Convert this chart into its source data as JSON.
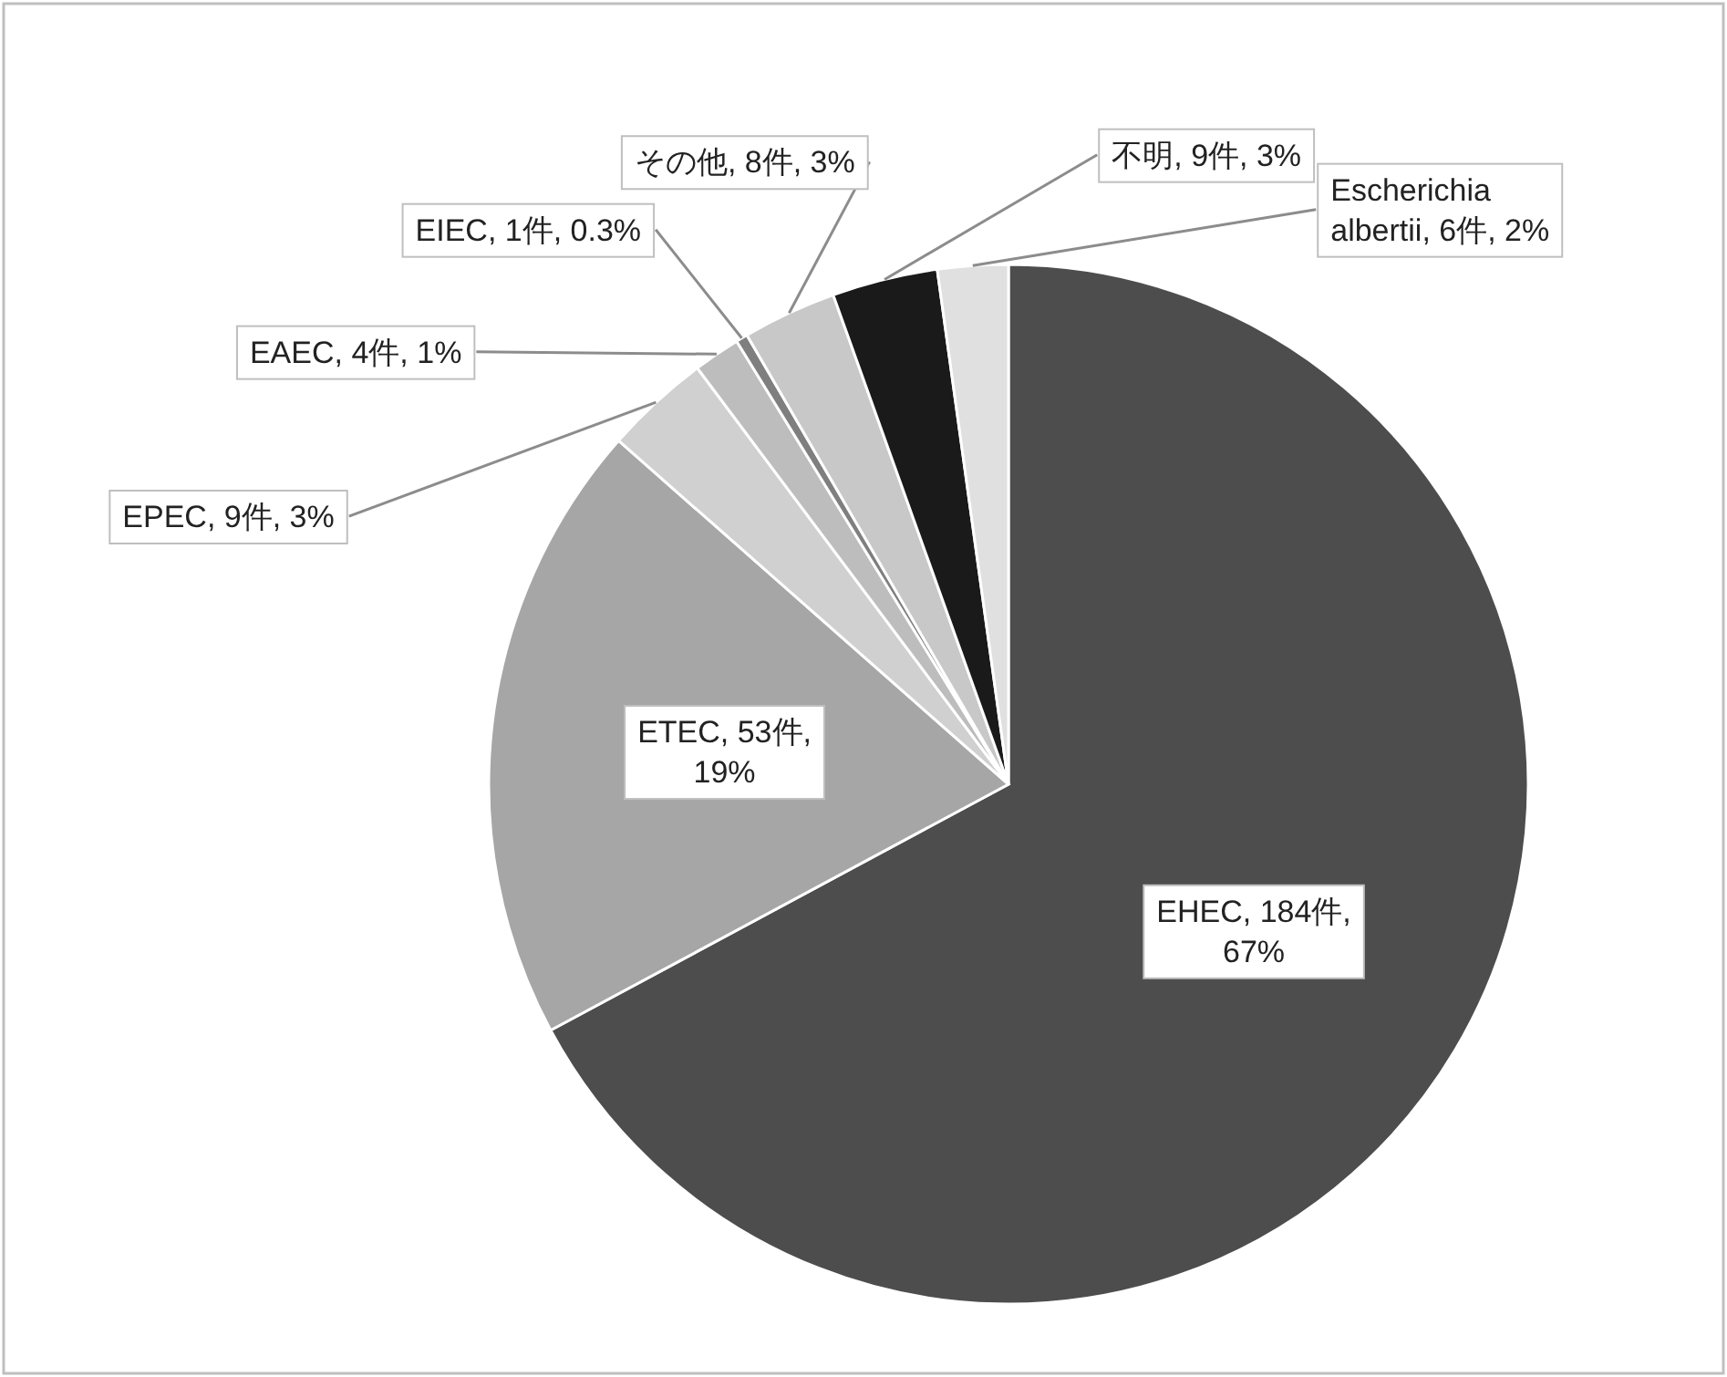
{
  "chart_data": {
    "type": "pie",
    "categories": [
      "EHEC",
      "ETEC",
      "EPEC",
      "EAEC",
      "EIEC",
      "その他",
      "不明",
      "Escherichia albertii"
    ],
    "values": [
      184,
      53,
      9,
      4,
      1,
      8,
      9,
      6
    ],
    "value_labels": [
      ", 184件, 67%",
      ", 53件, 19%",
      ", 9件, 3%",
      ", 4件, 1%",
      ", 1件, 0.3%",
      ", 8件, 3%",
      ", 9件, 3%",
      ", 6件, 2%"
    ],
    "colors": [
      "#4d4d4d",
      "#a6a6a6",
      "#d0d0d0",
      "#bdbdbd",
      "#7f7f7f",
      "#c8c8c8",
      "#1a1a1a",
      "#e0e0e0"
    ]
  }
}
